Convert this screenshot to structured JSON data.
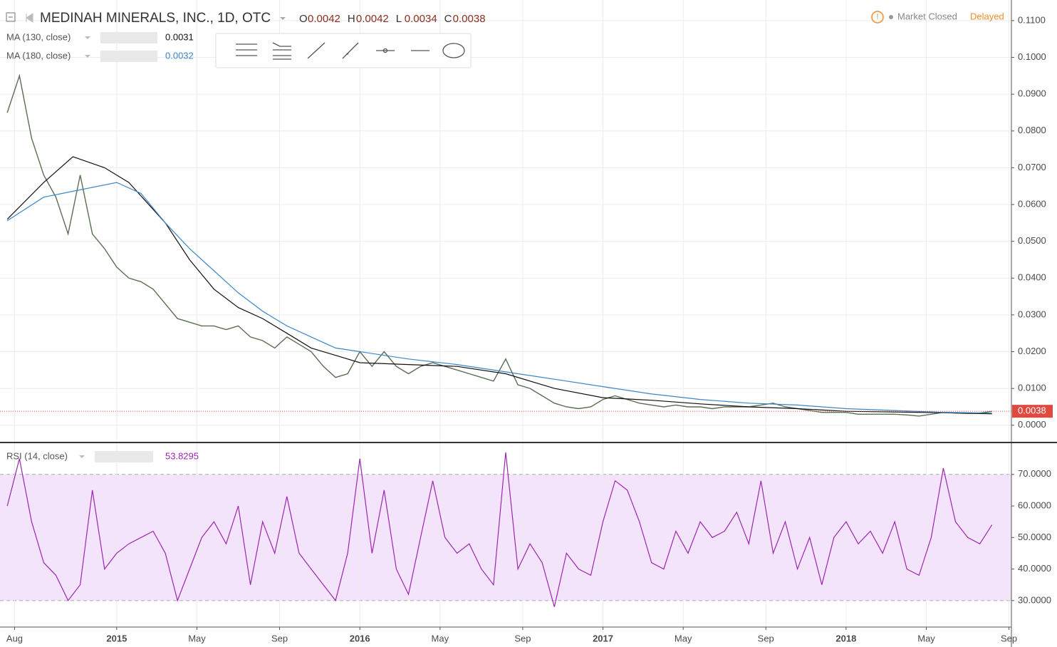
{
  "header": {
    "title": "MEDINAH MINERALS, INC., 1D, OTC",
    "ohlc": [
      {
        "label": "O",
        "value": 0.0042
      },
      {
        "label": "H",
        "value": 0.0042
      },
      {
        "label": "L",
        "value": 0.0034
      },
      {
        "label": "C",
        "value": 0.0038
      }
    ],
    "status": "Market Closed",
    "delay": "Delayed"
  },
  "chart_data": [
    {
      "type": "line",
      "xlim": [
        2014.52,
        2018.68
      ],
      "ylim": [
        -0.0045,
        0.1156
      ],
      "grid": true,
      "last_value": 0.0038,
      "last_color": "#e0493f",
      "yticks": [
        {
          "value": 0,
          "label": "0.0000"
        },
        {
          "value": 0.01,
          "label": "0.0100"
        },
        {
          "value": 0.02,
          "label": "0.0200"
        },
        {
          "value": 0.03,
          "label": "0.0300"
        },
        {
          "value": 0.04,
          "label": "0.0400"
        },
        {
          "value": 0.05,
          "label": "0.0500"
        },
        {
          "value": 0.06,
          "label": "0.0600"
        },
        {
          "value": 0.07,
          "label": "0.0700"
        },
        {
          "value": 0.08,
          "label": "0.0800"
        },
        {
          "value": 0.09,
          "label": "0.0900"
        },
        {
          "value": 0.1,
          "label": "0.1000"
        },
        {
          "value": 0.11,
          "label": "0.1100"
        }
      ],
      "series": [
        {
          "color": "#5a6e52",
          "x": [
            2014.55,
            2014.6,
            2014.65,
            2014.7,
            2014.75,
            2014.8,
            2014.85,
            2014.9,
            2014.95,
            2015,
            2015.05,
            2015.1,
            2015.15,
            2015.2,
            2015.25,
            2015.3,
            2015.35,
            2015.4,
            2015.45,
            2015.5,
            2015.55,
            2015.6,
            2015.65,
            2015.7,
            2015.75,
            2015.8,
            2015.85,
            2015.9,
            2015.95,
            2016,
            2016.05,
            2016.1,
            2016.15,
            2016.2,
            2016.25,
            2016.3,
            2016.35,
            2016.4,
            2016.45,
            2016.5,
            2016.55,
            2016.6,
            2016.65,
            2016.7,
            2016.75,
            2016.8,
            2016.85,
            2016.9,
            2016.95,
            2017,
            2017.05,
            2017.1,
            2017.15,
            2017.2,
            2017.25,
            2017.3,
            2017.35,
            2017.4,
            2017.45,
            2017.5,
            2017.55,
            2017.6,
            2017.65,
            2017.7,
            2017.75,
            2017.8,
            2017.85,
            2017.9,
            2017.95,
            2018,
            2018.05,
            2018.1,
            2018.15,
            2018.2,
            2018.25,
            2018.3,
            2018.35,
            2018.4,
            2018.45,
            2018.5,
            2018.55,
            2018.6
          ],
          "values": [
            0.085,
            0.095,
            0.078,
            0.068,
            0.062,
            0.052,
            0.068,
            0.052,
            0.048,
            0.043,
            0.04,
            0.039,
            0.037,
            0.033,
            0.029,
            0.028,
            0.027,
            0.027,
            0.026,
            0.027,
            0.024,
            0.023,
            0.021,
            0.024,
            0.022,
            0.02,
            0.016,
            0.013,
            0.014,
            0.02,
            0.016,
            0.02,
            0.016,
            0.014,
            0.016,
            0.017,
            0.016,
            0.015,
            0.014,
            0.013,
            0.012,
            0.018,
            0.011,
            0.01,
            0.008,
            0.006,
            0.005,
            0.0045,
            0.005,
            0.007,
            0.008,
            0.007,
            0.006,
            0.0055,
            0.005,
            0.0055,
            0.005,
            0.005,
            0.0045,
            0.005,
            0.005,
            0.005,
            0.0055,
            0.006,
            0.005,
            0.0045,
            0.004,
            0.0035,
            0.0035,
            0.0035,
            0.003,
            0.003,
            0.003,
            0.003,
            0.0028,
            0.0025,
            0.003,
            0.0035,
            0.0033,
            0.0032,
            0.0033,
            0.0038
          ]
        },
        {
          "name": "MA (130, close)",
          "last": 0.0031,
          "color": "#111111",
          "x": [
            2014.55,
            2014.7,
            2014.82,
            2014.95,
            2015.05,
            2015.2,
            2015.3,
            2015.4,
            2015.5,
            2015.6,
            2015.7,
            2015.8,
            2015.9,
            2016,
            2016.2,
            2016.4,
            2016.6,
            2016.8,
            2017,
            2017.2,
            2017.4,
            2017.6,
            2017.8,
            2018,
            2018.2,
            2018.4,
            2018.6
          ],
          "values": [
            0.056,
            0.066,
            0.073,
            0.07,
            0.066,
            0.055,
            0.045,
            0.037,
            0.032,
            0.029,
            0.025,
            0.021,
            0.019,
            0.017,
            0.0165,
            0.016,
            0.014,
            0.01,
            0.0075,
            0.0068,
            0.0058,
            0.005,
            0.0045,
            0.0038,
            0.0036,
            0.0034,
            0.0031
          ]
        },
        {
          "name": "MA (180, close)",
          "last": 0.0032,
          "color": "#3d85c6",
          "x": [
            2014.55,
            2014.7,
            2014.85,
            2015,
            2015.1,
            2015.2,
            2015.3,
            2015.4,
            2015.5,
            2015.6,
            2015.7,
            2015.8,
            2015.9,
            2016,
            2016.2,
            2016.4,
            2016.6,
            2016.8,
            2017,
            2017.2,
            2017.4,
            2017.6,
            2017.8,
            2018,
            2018.2,
            2018.4,
            2018.6
          ],
          "values": [
            0.0556,
            0.062,
            0.064,
            0.066,
            0.063,
            0.055,
            0.048,
            0.042,
            0.036,
            0.031,
            0.027,
            0.024,
            0.021,
            0.02,
            0.018,
            0.0165,
            0.0145,
            0.0125,
            0.0105,
            0.0085,
            0.007,
            0.006,
            0.0055,
            0.0045,
            0.004,
            0.0035,
            0.0033
          ]
        }
      ]
    },
    {
      "type": "line",
      "title": "RSI (14, close)",
      "last": 53.8295,
      "color": "#9c27b0",
      "band": [
        30,
        70
      ],
      "band_color": "#f3e3fb",
      "xlim": [
        2014.52,
        2018.68
      ],
      "ylim": [
        21.6,
        79.9
      ],
      "grid": true,
      "yticks": [
        {
          "value": 30,
          "label": "30.0000"
        },
        {
          "value": 40,
          "label": "40.0000"
        },
        {
          "value": 50,
          "label": "50.0000"
        },
        {
          "value": 60,
          "label": "60.0000"
        },
        {
          "value": 70,
          "label": "70.0000"
        }
      ],
      "xticks": [
        {
          "value": 2014.58,
          "label": "Aug"
        },
        2015,
        {
          "value": 2015.33,
          "label": "May"
        },
        {
          "value": 2015.67,
          "label": "Sep"
        },
        2016,
        {
          "value": 2016.33,
          "label": "May"
        },
        {
          "value": 2016.67,
          "label": "Sep"
        },
        2017,
        {
          "value": 2017.33,
          "label": "May"
        },
        {
          "value": 2017.67,
          "label": "Sep"
        },
        2018,
        {
          "value": 2018.33,
          "label": "May"
        },
        {
          "value": 2018.67,
          "label": "Sep"
        }
      ],
      "x": [
        2014.55,
        2014.6,
        2014.65,
        2014.7,
        2014.75,
        2014.8,
        2014.85,
        2014.9,
        2014.95,
        2015,
        2015.05,
        2015.1,
        2015.15,
        2015.2,
        2015.25,
        2015.3,
        2015.35,
        2015.4,
        2015.45,
        2015.5,
        2015.55,
        2015.6,
        2015.65,
        2015.7,
        2015.75,
        2015.8,
        2015.85,
        2015.9,
        2015.95,
        2016,
        2016.05,
        2016.1,
        2016.15,
        2016.2,
        2016.25,
        2016.3,
        2016.35,
        2016.4,
        2016.45,
        2016.5,
        2016.55,
        2016.6,
        2016.65,
        2016.7,
        2016.75,
        2016.8,
        2016.85,
        2016.9,
        2016.95,
        2017,
        2017.05,
        2017.1,
        2017.15,
        2017.2,
        2017.25,
        2017.3,
        2017.35,
        2017.4,
        2017.45,
        2017.5,
        2017.55,
        2017.6,
        2017.65,
        2017.7,
        2017.75,
        2017.8,
        2017.85,
        2017.9,
        2017.95,
        2018,
        2018.05,
        2018.1,
        2018.15,
        2018.2,
        2018.25,
        2018.3,
        2018.35,
        2018.4,
        2018.45,
        2018.5,
        2018.55,
        2018.6
      ],
      "values": [
        60,
        75,
        55,
        42,
        38,
        30,
        35,
        65,
        40,
        45,
        48,
        50,
        52,
        45,
        30,
        40,
        50,
        55,
        48,
        60,
        35,
        55,
        45,
        63,
        45,
        40,
        35,
        30,
        45,
        75,
        45,
        65,
        40,
        32,
        50,
        68,
        50,
        45,
        48,
        40,
        35,
        77,
        40,
        48,
        42,
        28,
        45,
        40,
        38,
        55,
        68,
        65,
        55,
        42,
        40,
        52,
        45,
        55,
        50,
        52,
        58,
        48,
        68,
        45,
        55,
        40,
        50,
        35,
        50,
        55,
        48,
        52,
        45,
        55,
        40,
        38,
        50,
        72,
        55,
        50,
        48,
        54
      ]
    }
  ]
}
